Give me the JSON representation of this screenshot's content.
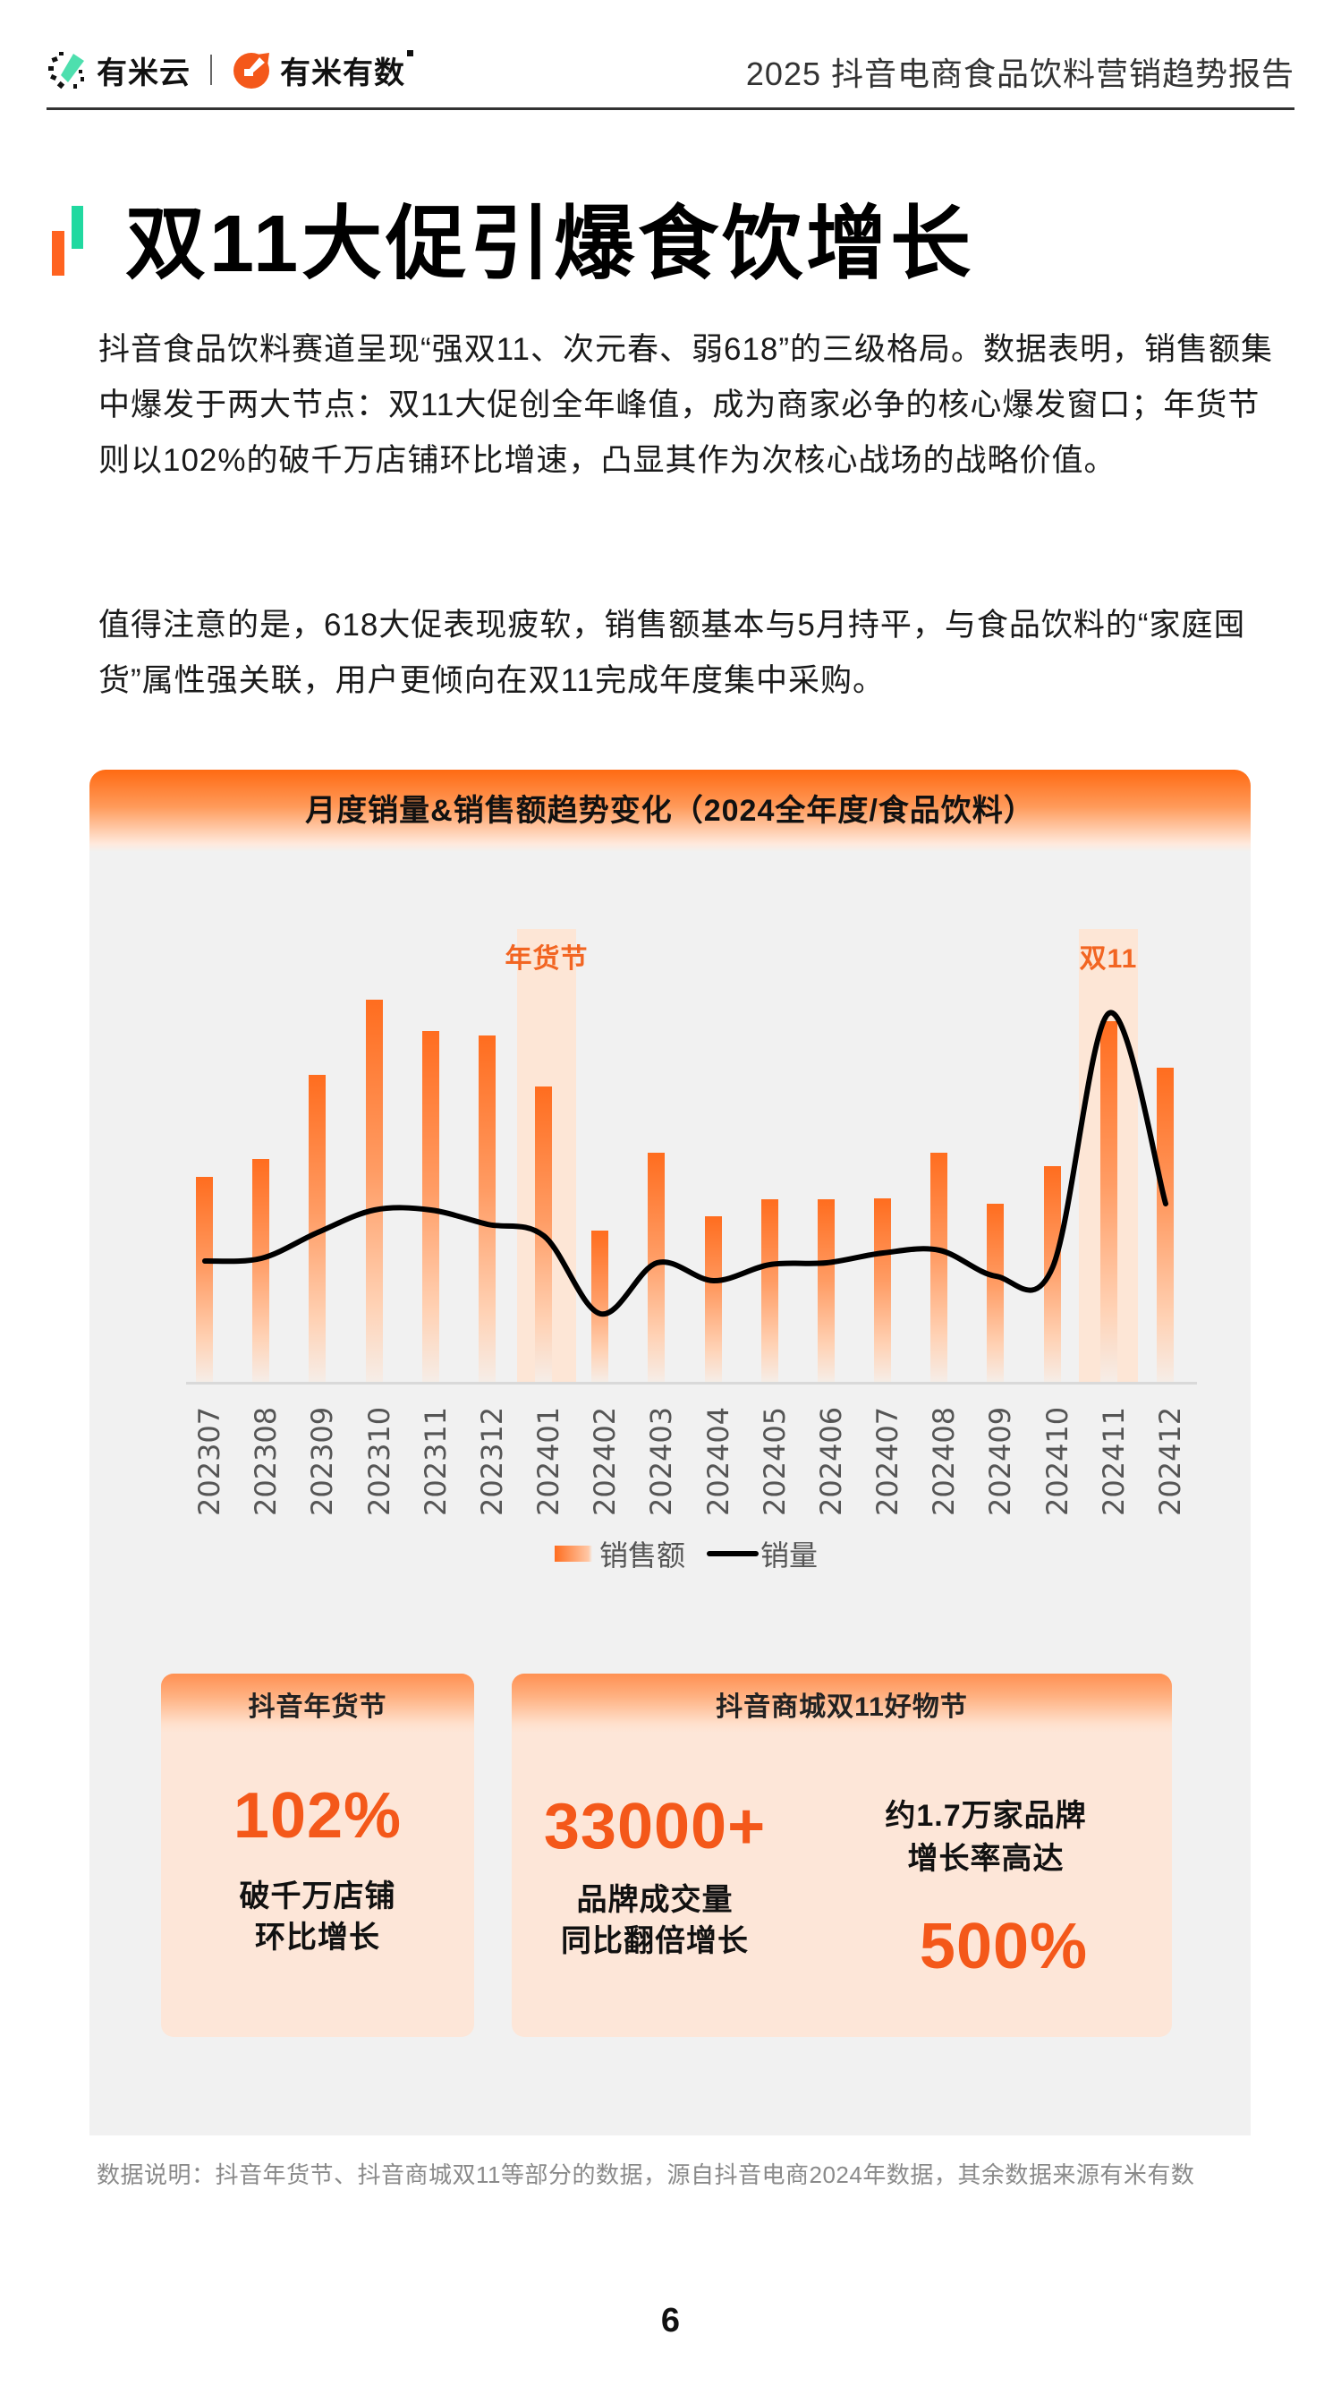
{
  "header": {
    "logo_left": "有米云",
    "logo_right": "有米有数",
    "report_title": "2025 抖音电商食品饮料营销趋势报告"
  },
  "page_title": "双11大促引爆食饮增长",
  "paragraphs": [
    "抖音食品饮料赛道呈现“强双11、次元春、弱618”的三级格局。数据表明，销售额集中爆发于两大节点：双11大促创全年峰值，成为商家必争的核心爆发窗口；年货节则以102%的破千万店铺环比增速，凸显其作为次核心战场的战略价值。",
    "值得注意的是，618大促表现疲软，销售额基本与5月持平，与食品饮料的“家庭囤货”属性强关联，用户更倾向在双11完成年度集中采购。"
  ],
  "chart_card": {
    "title": "月度销量&销售额趋势变化（2024全年度/食品饮料）"
  },
  "chart_data": {
    "type": "bar",
    "title": "月度销量&销售额趋势变化（2024全年度/食品饮料）",
    "categories": [
      "202307",
      "202308",
      "202309",
      "202310",
      "202311",
      "202312",
      "202401",
      "202402",
      "202403",
      "202404",
      "202405",
      "202406",
      "202407",
      "202408",
      "202409",
      "202410",
      "202411",
      "202412"
    ],
    "series": [
      {
        "name": "销售额",
        "type": "bar",
        "color": "#FF6D1F",
        "values": [
          229,
          249,
          343,
          427,
          392,
          387,
          330,
          169,
          256,
          185,
          204,
          204,
          205,
          256,
          199,
          241,
          403,
          351
        ]
      },
      {
        "name": "销量",
        "type": "line",
        "color": "#000000",
        "values": [
          135,
          138,
          167,
          192,
          192,
          176,
          163,
          76,
          133,
          113,
          131,
          133,
          144,
          147,
          118,
          128,
          412,
          199
        ]
      }
    ],
    "units": "relative (no y-axis shown)",
    "xlabel": "",
    "ylabel": "",
    "grid": false,
    "legend_position": "bottom",
    "annotations": [
      {
        "label": "年货节",
        "category": "202401"
      },
      {
        "label": "双11",
        "category": "202411"
      }
    ]
  },
  "legend": {
    "bar_label": "销售额",
    "line_label": "销量"
  },
  "stat_cards": [
    {
      "title": "抖音年货节",
      "number": "102%",
      "desc_line1": "破千万店铺",
      "desc_line2": "环比增长"
    },
    {
      "title": "抖音商城双11好物节",
      "left_number": "33000+",
      "left_desc_line1": "品牌成交量",
      "left_desc_line2": "同比翻倍增长",
      "right_desc_line1": "约1.7万家品牌",
      "right_desc_line2": "增长率高达",
      "right_number": "500%"
    }
  ],
  "source_note": "数据说明：抖音年货节、抖音商城双11等部分的数据，源自抖音电商2024年数据，其余数据来源有米有数",
  "page_number": "6",
  "colors": {
    "accent_orange": "#FF6320",
    "accent_green": "#21D9A0",
    "number_orange": "#F4581A"
  }
}
